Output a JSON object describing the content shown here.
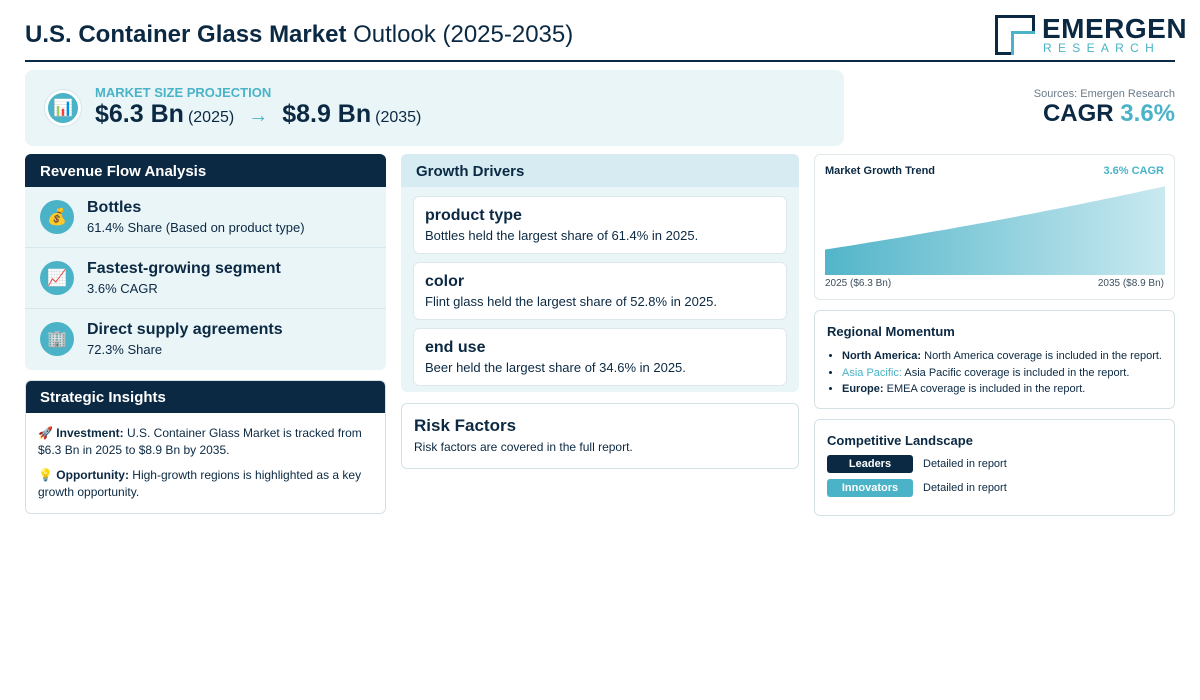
{
  "header": {
    "title_bold": "U.S. Container Glass Market",
    "title_rest": "Outlook (2025-2035)",
    "logo_name": "EMERGEN",
    "logo_sub": "RESEARCH"
  },
  "projection": {
    "label": "MARKET SIZE PROJECTION",
    "icon": "bar-chart-icon",
    "start_value": "$6.3 Bn",
    "start_year": "(2025)",
    "arrow": "→",
    "end_value": "$8.9 Bn",
    "end_year": "(2035)"
  },
  "sources": "Sources: Emergen Research",
  "cagr": {
    "label": "CAGR",
    "value": "3.6%"
  },
  "revenue": {
    "title": "Revenue Flow Analysis",
    "items": [
      {
        "icon": "money-bag-icon",
        "title": "Bottles",
        "sub": "61.4% Share (Based on product type)"
      },
      {
        "icon": "trend-chart-icon",
        "title": "Fastest-growing segment",
        "sub": "3.6% CAGR"
      },
      {
        "icon": "building-icon",
        "title": "Direct supply agreements",
        "sub": "72.3% Share"
      }
    ]
  },
  "strategic": {
    "title": "Strategic Insights",
    "investment_label": "Investment:",
    "investment_text": "U.S. Container Glass Market is tracked from $6.3 Bn in 2025 to $8.9 Bn by 2035.",
    "opportunity_label": "Opportunity:",
    "opportunity_text": "High-growth regions is highlighted as a key growth opportunity."
  },
  "drivers": {
    "title": "Growth Drivers",
    "items": [
      {
        "title": "product type",
        "desc": "Bottles held the largest share of 61.4% in 2025."
      },
      {
        "title": "color",
        "desc": "Flint glass held the largest share of 52.8% in 2025."
      },
      {
        "title": "end use",
        "desc": "Beer held the largest share of 34.6% in 2025."
      }
    ]
  },
  "risk": {
    "title": "Risk Factors",
    "desc": "Risk factors are covered in the full report."
  },
  "trend": {
    "title": "Market Growth Trend",
    "cagr": "3.6% CAGR",
    "start_label": "2025 ($6.3 Bn)",
    "end_label": "2035 ($8.9 Bn)"
  },
  "chart_data": {
    "type": "area",
    "x": [
      2025,
      2035
    ],
    "values": [
      6.3,
      8.9
    ],
    "title": "Market Growth Trend"
  },
  "regional": {
    "title": "Regional Momentum",
    "items": [
      {
        "name": "North America:",
        "text": "North America coverage is included in the report."
      },
      {
        "name": "Asia Pacific:",
        "text": "Asia Pacific coverage is included in the report."
      },
      {
        "name": "Europe:",
        "text": "EMEA coverage is included in the report."
      }
    ]
  },
  "competitive": {
    "title": "Competitive Landscape",
    "leaders_label": "Leaders",
    "leaders_text": "Detailed in report",
    "innovators_label": "Innovators",
    "innovators_text": "Detailed in report"
  },
  "colors": {
    "navy": "#0b2942",
    "accent": "#4ab3c7",
    "panel_bg": "#eaf5f8"
  }
}
